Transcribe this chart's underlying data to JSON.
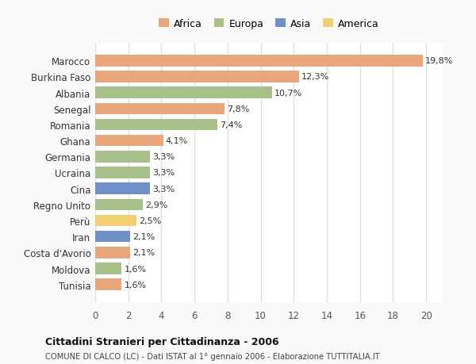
{
  "categories": [
    "Marocco",
    "Burkina Faso",
    "Albania",
    "Senegal",
    "Romania",
    "Ghana",
    "Germania",
    "Ucraina",
    "Cina",
    "Regno Unito",
    "Perù",
    "Iran",
    "Costa d'Avorio",
    "Moldova",
    "Tunisia"
  ],
  "values": [
    19.8,
    12.3,
    10.7,
    7.8,
    7.4,
    4.1,
    3.3,
    3.3,
    3.3,
    2.9,
    2.5,
    2.1,
    2.1,
    1.6,
    1.6
  ],
  "labels": [
    "19,8%",
    "12,3%",
    "10,7%",
    "7,8%",
    "7,4%",
    "4,1%",
    "3,3%",
    "3,3%",
    "3,3%",
    "2,9%",
    "2,5%",
    "2,1%",
    "2,1%",
    "1,6%",
    "1,6%"
  ],
  "colors": [
    "#e8a87c",
    "#e8a87c",
    "#a8c08a",
    "#e8a87c",
    "#a8c08a",
    "#e8a87c",
    "#a8c08a",
    "#a8c08a",
    "#7090c8",
    "#a8c08a",
    "#f0d070",
    "#7090c8",
    "#e8a87c",
    "#a8c08a",
    "#e8a87c"
  ],
  "legend_labels": [
    "Africa",
    "Europa",
    "Asia",
    "America"
  ],
  "legend_colors": [
    "#e8a87c",
    "#a8c08a",
    "#7090c8",
    "#f0d070"
  ],
  "xlim": [
    0,
    21
  ],
  "xticks": [
    0,
    2,
    4,
    6,
    8,
    10,
    12,
    14,
    16,
    18,
    20
  ],
  "title": "Cittadini Stranieri per Cittadinanza - 2006",
  "subtitle": "COMUNE DI CALCO (LC) - Dati ISTAT al 1° gennaio 2006 - Elaborazione TUTTITALIA.IT",
  "plot_bg_color": "#ffffff",
  "fig_bg_color": "#f9f9f9",
  "bar_height": 0.72
}
